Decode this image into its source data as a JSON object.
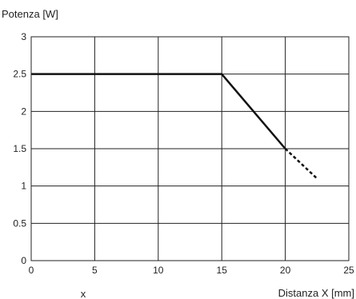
{
  "chart_data": {
    "type": "line",
    "title": "",
    "xlabel": "Distanza X [mm]",
    "ylabel": "Potenza [W]",
    "footnote": "x",
    "xlim": [
      0,
      25
    ],
    "ylim": [
      0,
      3
    ],
    "xticks": [
      0,
      5,
      10,
      15,
      20,
      25
    ],
    "yticks": [
      0,
      0.5,
      1,
      1.5,
      2,
      2.5,
      3
    ],
    "xtick_labels": [
      "0",
      "5",
      "10",
      "15",
      "20",
      "25"
    ],
    "ytick_labels": [
      "0",
      "0.5",
      "1",
      "1.5",
      "2",
      "2.5",
      "3"
    ],
    "grid": true,
    "series": [
      {
        "style": "solid",
        "color": "#111111",
        "x": [
          0,
          15,
          20
        ],
        "y": [
          2.5,
          2.5,
          1.5
        ]
      },
      {
        "style": "dashed",
        "color": "#111111",
        "x": [
          20,
          22.5
        ],
        "y": [
          1.5,
          1.1
        ]
      }
    ]
  }
}
